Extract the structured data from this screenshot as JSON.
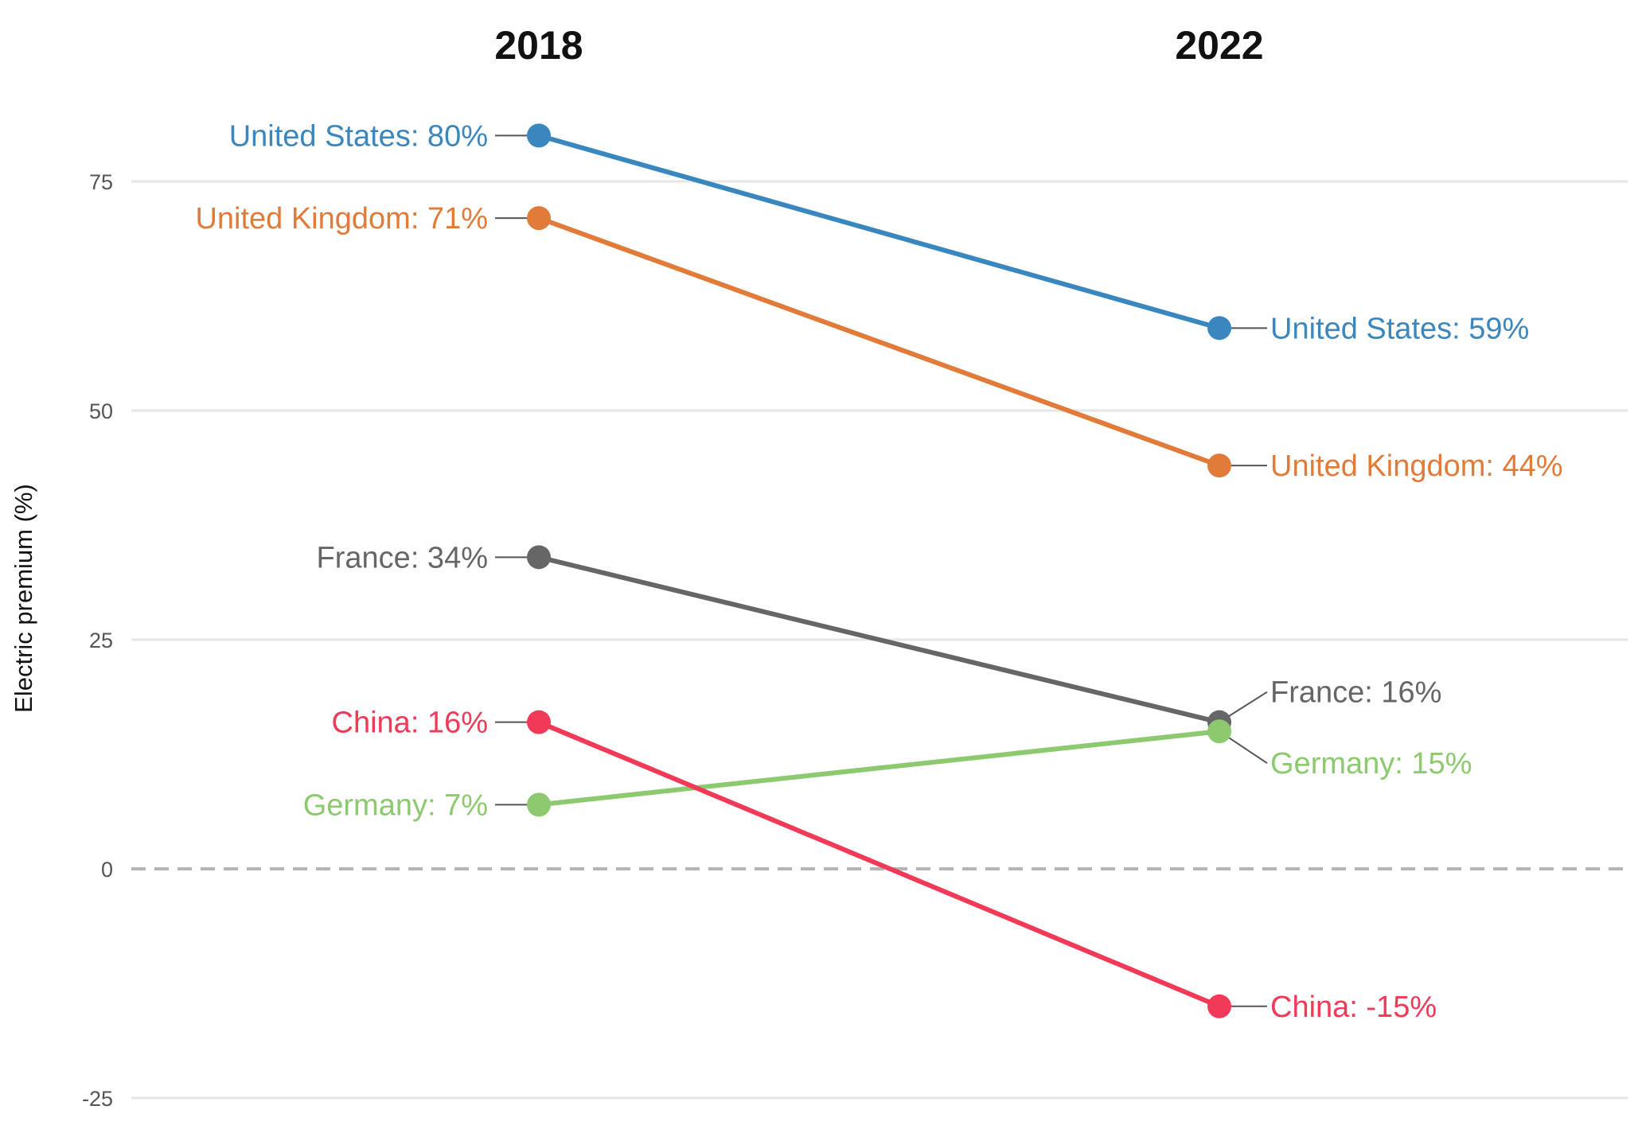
{
  "chart_data": {
    "type": "line",
    "chart_style": "slope",
    "x": [
      "2018",
      "2022"
    ],
    "ylabel": "Electric premium (%)",
    "ylim": [
      -25,
      85
    ],
    "yticks": [
      {
        "value": 75,
        "label": "75"
      },
      {
        "value": 50,
        "label": "50"
      },
      {
        "value": 25,
        "label": "25"
      },
      {
        "value": 0,
        "label": "0"
      },
      {
        "value": -25,
        "label": "-25"
      }
    ],
    "grid": true,
    "zero_line": "dashed",
    "legend": "none (direct labels)",
    "series": [
      {
        "name": "United States",
        "values": [
          80,
          59
        ],
        "color": "#3a87c0",
        "labels": [
          "United States: 80%",
          "United States: 59%"
        ]
      },
      {
        "name": "United Kingdom",
        "values": [
          71,
          44
        ],
        "color": "#e07b39",
        "labels": [
          "United Kingdom: 71%",
          "United Kingdom: 44%"
        ]
      },
      {
        "name": "France",
        "values": [
          34,
          16
        ],
        "color": "#666666",
        "labels": [
          "France: 34%",
          "France: 16%"
        ]
      },
      {
        "name": "Germany",
        "values": [
          7,
          15
        ],
        "color": "#8cc96f",
        "labels": [
          "Germany: 7%",
          "Germany: 15%"
        ]
      },
      {
        "name": "China",
        "values": [
          16,
          -15
        ],
        "color": "#f03a57",
        "labels": [
          "China: 16%",
          "China: -15%"
        ]
      }
    ]
  }
}
